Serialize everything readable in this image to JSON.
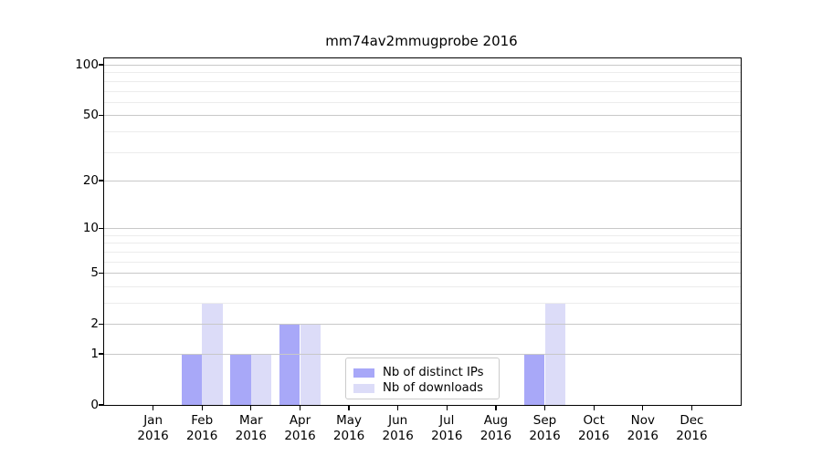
{
  "title": "mm74av2mmugprobe 2016",
  "year": "2016",
  "colors": {
    "distinct_ips_bar": "#a8a8f8",
    "downloads_bar": "#dcdcf8",
    "grid_major": "#c8c8c8",
    "grid_minor": "#ececec",
    "axis": "#000000",
    "legend_border": "#cbcbcb"
  },
  "legend": {
    "items": [
      {
        "label": "Nb of distinct IPs",
        "color": "#a8a8f8"
      },
      {
        "label": "Nb of downloads",
        "color": "#dcdcf8"
      }
    ]
  },
  "chart_data": {
    "type": "bar",
    "title": "mm74av2mmugprobe 2016",
    "categories": [
      "Jan 2016",
      "Feb 2016",
      "Mar 2016",
      "Apr 2016",
      "May 2016",
      "Jun 2016",
      "Jul 2016",
      "Aug 2016",
      "Sep 2016",
      "Oct 2016",
      "Nov 2016",
      "Dec 2016"
    ],
    "series": [
      {
        "name": "Nb of distinct IPs",
        "color": "#a8a8f8",
        "values": [
          0,
          1,
          1,
          2,
          0,
          0,
          0,
          0,
          1,
          0,
          0,
          0
        ]
      },
      {
        "name": "Nb of downloads",
        "color": "#dcdcf8",
        "values": [
          0,
          3,
          1,
          2,
          0,
          0,
          0,
          0,
          3,
          0,
          0,
          0
        ]
      }
    ],
    "xlabel": "",
    "ylabel": "",
    "y_scale": "log(1+v)",
    "y_ticks": [
      0,
      1,
      2,
      5,
      10,
      20,
      50,
      100
    ],
    "y_minor_gridlines": [
      3,
      4,
      6,
      7,
      8,
      9,
      30,
      40,
      60,
      70,
      80,
      90
    ],
    "ylim": [
      0,
      107
    ],
    "grid": "horizontal",
    "legend_position": "lower center"
  }
}
